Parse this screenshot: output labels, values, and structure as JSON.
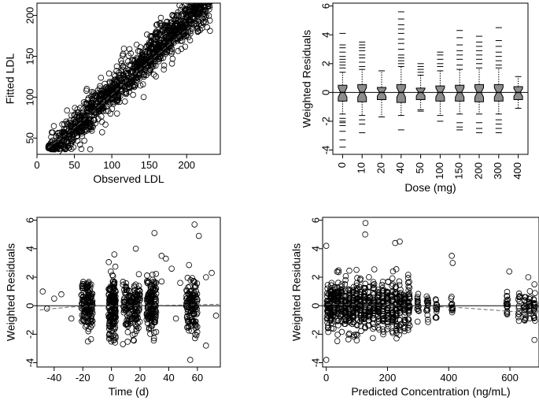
{
  "chart_data": [
    {
      "type": "scatter",
      "title": "",
      "xlabel": "Observed LDL",
      "ylabel": "Fitted LDL",
      "xlim": [
        0,
        245
      ],
      "ylim": [
        30,
        215
      ],
      "xticks": [
        "0",
        "50",
        "100",
        "150",
        "200"
      ],
      "xtick_values": [
        0,
        50,
        100,
        150,
        200
      ],
      "yticks": [
        "50",
        "100",
        "150",
        "200"
      ],
      "ytick_values": [
        50,
        100,
        150,
        200
      ],
      "reference_line": {
        "slope": 1,
        "intercept": 0
      },
      "trend_line": [
        [
          15,
          38
        ],
        [
          60,
          70
        ],
        [
          120,
          120
        ],
        [
          180,
          167
        ],
        [
          235,
          210
        ]
      ],
      "cloud": {
        "n": 1300,
        "x_range": [
          15,
          232
        ],
        "slope": 0.88,
        "intercept": 18,
        "spread": 14
      }
    },
    {
      "type": "box",
      "title": "",
      "xlabel": "Dose (mg)",
      "ylabel": "Weighted Residuals",
      "ylim": [
        -4.3,
        6.2
      ],
      "yticks": [
        "-4",
        "-2",
        "0",
        "2",
        "4",
        "6"
      ],
      "ytick_values": [
        -4,
        -2,
        0,
        2,
        4,
        6
      ],
      "categories": [
        "0",
        "10",
        "20",
        "40",
        "50",
        "100",
        "150",
        "200",
        "300",
        "400"
      ],
      "boxes": [
        {
          "q1": -0.6,
          "median": 0.0,
          "q3": 0.5,
          "whisker_low": -1.5,
          "whisker_high": 1.4,
          "outliers": [
            1.7,
            1.9,
            2.1,
            2.3,
            2.5,
            2.8,
            3.1,
            3.3,
            4.1,
            -1.8,
            -2.0,
            -2.1,
            -2.3,
            -2.7,
            -3.3,
            -3.8
          ]
        },
        {
          "q1": -0.65,
          "median": 0.0,
          "q3": 0.55,
          "whisker_low": -1.6,
          "whisker_high": 1.6,
          "outliers": [
            1.8,
            2.1,
            2.4,
            2.6,
            2.9,
            3.1,
            3.3,
            3.5,
            -1.9,
            -2.2,
            -2.8
          ]
        },
        {
          "q1": -0.5,
          "median": 0.0,
          "q3": 0.35,
          "whisker_low": -1.7,
          "whisker_high": 1.5,
          "outliers": []
        },
        {
          "q1": -0.7,
          "median": 0.0,
          "q3": 0.55,
          "whisker_low": -1.6,
          "whisker_high": 1.8,
          "outliers": [
            2.0,
            2.2,
            2.4,
            2.6,
            3.0,
            3.4,
            3.7,
            4.1,
            4.4,
            4.7,
            5.1,
            5.6,
            -2.6
          ]
        },
        {
          "q1": -0.5,
          "median": 0.0,
          "q3": 0.3,
          "whisker_low": -1.2,
          "whisker_high": 1.2,
          "outliers": [
            1.4,
            1.6,
            1.8,
            2.0,
            -1.3
          ]
        },
        {
          "q1": -0.6,
          "median": 0.0,
          "q3": 0.45,
          "whisker_low": -1.6,
          "whisker_high": 1.5,
          "outliers": [
            1.8,
            2.0,
            2.3,
            2.6,
            2.8,
            -2.0
          ]
        },
        {
          "q1": -0.6,
          "median": 0.0,
          "q3": 0.5,
          "whisker_low": -1.5,
          "whisker_high": 1.6,
          "outliers": [
            1.9,
            2.3,
            2.6,
            2.9,
            3.3,
            3.8,
            4.3,
            -2.1,
            -2.4,
            -2.6
          ]
        },
        {
          "q1": -0.65,
          "median": 0.0,
          "q3": 0.55,
          "whisker_low": -1.5,
          "whisker_high": 1.7,
          "outliers": [
            2.0,
            2.3,
            2.6,
            2.9,
            3.2,
            3.5,
            3.9,
            -2.1,
            -2.5,
            -2.8
          ]
        },
        {
          "q1": -0.6,
          "median": 0.0,
          "q3": 0.55,
          "whisker_low": -1.5,
          "whisker_high": 1.7,
          "outliers": [
            1.9,
            2.2,
            2.5,
            2.8,
            3.2,
            3.6,
            4.5,
            -1.9,
            -2.2,
            -2.5,
            -2.8
          ]
        },
        {
          "q1": -0.5,
          "median": 0.0,
          "q3": 0.4,
          "whisker_low": -1.1,
          "whisker_high": 1.1,
          "outliers": []
        }
      ]
    },
    {
      "type": "scatter",
      "title": "",
      "xlabel": "Time (d)",
      "ylabel": "Weighted Residuals",
      "xlim": [
        -52,
        76
      ],
      "ylim": [
        -4.3,
        6.2
      ],
      "xticks": [
        "-40",
        "-20",
        "0",
        "20",
        "40",
        "60"
      ],
      "xtick_values": [
        -40,
        -20,
        0,
        20,
        40,
        60
      ],
      "yticks": [
        "-4",
        "-2",
        "0",
        "2",
        "4",
        "6"
      ],
      "ytick_values": [
        -4,
        -2,
        0,
        2,
        4,
        6
      ],
      "reference_line": {
        "y": 0
      },
      "trend_line": [
        [
          -50,
          -0.3
        ],
        [
          -30,
          -0.1
        ],
        [
          -10,
          0.0
        ],
        [
          20,
          0.0
        ],
        [
          50,
          0.05
        ],
        [
          75,
          0.1
        ]
      ],
      "clusters": [
        {
          "center": -17,
          "width": 4,
          "n": 140,
          "sd": 0.85
        },
        {
          "center": 0.5,
          "width": 2.5,
          "n": 170,
          "sd": 1.0
        },
        {
          "center": 14,
          "width": 6,
          "n": 160,
          "sd": 0.9
        },
        {
          "center": 28,
          "width": 3.5,
          "n": 150,
          "sd": 0.9
        },
        {
          "center": 56,
          "width": 4,
          "n": 130,
          "sd": 1.1
        }
      ],
      "extra_points": [
        [
          -48,
          1.0
        ],
        [
          -40,
          0.5
        ],
        [
          -35,
          0.8
        ],
        [
          -28,
          -0.9
        ],
        [
          -45,
          -0.2
        ],
        [
          35,
          1.7
        ],
        [
          38,
          3.3
        ],
        [
          42,
          2.6
        ],
        [
          45,
          -0.9
        ],
        [
          48,
          1.6
        ],
        [
          66,
          2.0
        ],
        [
          70,
          2.3
        ],
        [
          73,
          -0.7
        ],
        [
          30,
          5.1
        ],
        [
          58,
          5.7
        ],
        [
          61,
          4.9
        ],
        [
          17,
          4.0
        ],
        [
          35,
          3.5
        ],
        [
          2,
          3.6
        ],
        [
          66,
          -2.8
        ],
        [
          55,
          -3.8
        ],
        [
          8,
          -2.7
        ]
      ]
    },
    {
      "type": "scatter",
      "title": "",
      "xlabel": "Predicted Concentration (ng/mL)",
      "ylabel": "Weighted Residuals",
      "xlim": [
        -12,
        695
      ],
      "ylim": [
        -4.3,
        6.2
      ],
      "xticks": [
        "0",
        "200",
        "400",
        "600"
      ],
      "xtick_values": [
        0,
        200,
        400,
        600
      ],
      "yticks": [
        "-4",
        "-2",
        "0",
        "2",
        "4",
        "6"
      ],
      "ytick_values": [
        -4,
        -2,
        0,
        2,
        4,
        6
      ],
      "reference_line": {
        "y": 0
      },
      "trend_line": [
        [
          0,
          0.1
        ],
        [
          150,
          0.05
        ],
        [
          300,
          0.0
        ],
        [
          450,
          -0.15
        ],
        [
          600,
          -0.4
        ],
        [
          680,
          -0.45
        ]
      ],
      "columns": [
        5,
        15,
        25,
        38,
        50,
        62,
        75,
        88,
        100,
        112,
        125,
        140,
        155,
        170,
        185,
        200,
        215,
        228,
        240,
        255,
        270,
        300,
        330,
        360,
        410,
        590,
        630,
        650,
        665,
        680
      ],
      "extra_points": [
        [
          0,
          4.2
        ],
        [
          128,
          5.8
        ],
        [
          127,
          5.0
        ],
        [
          225,
          4.4
        ],
        [
          240,
          4.5
        ],
        [
          410,
          3.5
        ],
        [
          413,
          3.0
        ],
        [
          598,
          2.4
        ],
        [
          660,
          2.0
        ],
        [
          680,
          1.5
        ],
        [
          0,
          -3.8
        ],
        [
          680,
          -2.4
        ]
      ]
    }
  ]
}
